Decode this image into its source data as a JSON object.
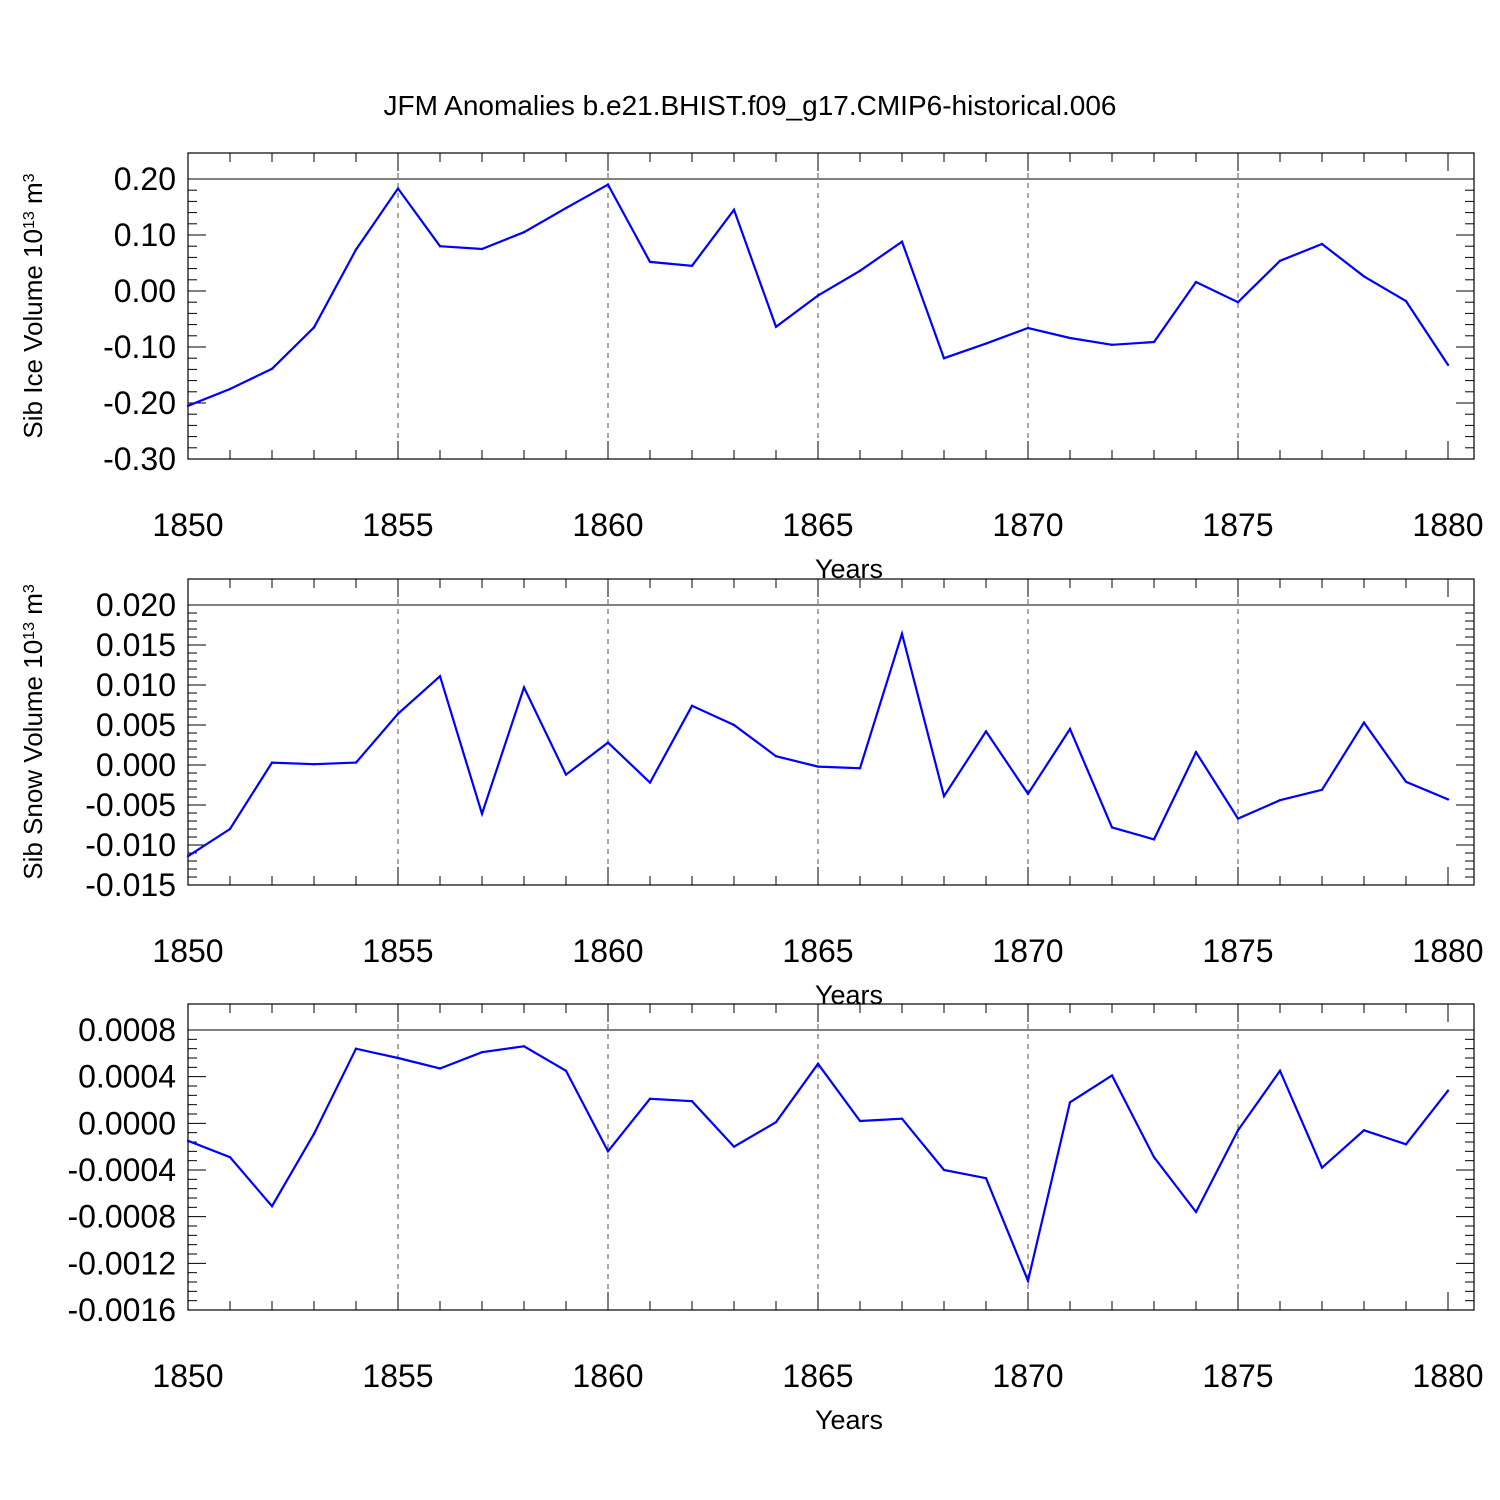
{
  "page": {
    "title": "JFM Anomalies b.e21.BHIST.f09_g17.CMIP6-historical.006"
  },
  "style": {
    "line_color": "#0000ff",
    "grid_color": "#555555"
  },
  "chart_data": [
    {
      "type": "line",
      "xlabel": "Years",
      "ylabel": "Sib Ice Volume",
      "ylabel_unit_base": "10",
      "ylabel_unit_exp": "13",
      "ylabel_unit": "m",
      "ylabel_unit_sup": "3",
      "xlim": [
        1850,
        1880
      ],
      "ylim": [
        -0.3,
        0.2
      ],
      "xticks": [
        1850,
        1855,
        1860,
        1865,
        1870,
        1875,
        1880
      ],
      "xtick_labels": [
        "1850",
        "1855",
        "1860",
        "1865",
        "1870",
        "1875",
        "1880"
      ],
      "yticks": [
        -0.3,
        -0.2,
        -0.1,
        0.0,
        0.1,
        0.2
      ],
      "ytick_labels": [
        "-0.30",
        "-0.20",
        "-0.10",
        "0.00",
        "0.10",
        "0.20"
      ],
      "x_minor_step": 1,
      "y_minor_step": 0.02,
      "grid": "x-major-dashed",
      "x": [
        1850,
        1851,
        1852,
        1853,
        1854,
        1855,
        1856,
        1857,
        1858,
        1859,
        1860,
        1861,
        1862,
        1863,
        1864,
        1865,
        1866,
        1867,
        1868,
        1869,
        1870,
        1871,
        1872,
        1873,
        1874,
        1875,
        1876,
        1877,
        1878,
        1879,
        1880
      ],
      "y": [
        -0.205,
        -0.175,
        -0.139,
        -0.065,
        0.074,
        0.183,
        0.08,
        0.075,
        0.105,
        0.148,
        0.19,
        0.052,
        0.045,
        0.145,
        -0.064,
        -0.008,
        0.036,
        0.088,
        -0.12,
        -0.094,
        -0.066,
        -0.084,
        -0.096,
        -0.091,
        0.016,
        -0.02,
        0.054,
        0.084,
        0.026,
        -0.018,
        -0.132
      ]
    },
    {
      "type": "line",
      "xlabel": "Years",
      "ylabel": "Sib Snow Volume",
      "ylabel_unit_base": "10",
      "ylabel_unit_exp": "13",
      "ylabel_unit": "m",
      "ylabel_unit_sup": "3",
      "xlim": [
        1850,
        1880
      ],
      "ylim": [
        -0.015,
        0.02
      ],
      "xticks": [
        1850,
        1855,
        1860,
        1865,
        1870,
        1875,
        1880
      ],
      "xtick_labels": [
        "1850",
        "1855",
        "1860",
        "1865",
        "1870",
        "1875",
        "1880"
      ],
      "yticks": [
        -0.015,
        -0.01,
        -0.005,
        0.0,
        0.005,
        0.01,
        0.015,
        0.02
      ],
      "ytick_labels": [
        "-0.015",
        "-0.010",
        "-0.005",
        "0.000",
        "0.005",
        "0.010",
        "0.015",
        "0.020"
      ],
      "x_minor_step": 1,
      "y_minor_step": 0.001,
      "grid": "x-major-dashed",
      "x": [
        1850,
        1851,
        1852,
        1853,
        1854,
        1855,
        1856,
        1857,
        1858,
        1859,
        1860,
        1861,
        1862,
        1863,
        1864,
        1865,
        1866,
        1867,
        1868,
        1869,
        1870,
        1871,
        1872,
        1873,
        1874,
        1875,
        1876,
        1877,
        1878,
        1879,
        1880
      ],
      "y": [
        -0.0114,
        -0.008,
        0.0003,
        0.0001,
        0.0003,
        0.0064,
        0.0111,
        -0.0061,
        0.0097,
        -0.0012,
        0.0028,
        -0.0022,
        0.0074,
        0.005,
        0.0011,
        -0.0002,
        -0.0004,
        0.0164,
        -0.0039,
        0.0042,
        -0.0036,
        0.0045,
        -0.0078,
        -0.0093,
        0.0016,
        -0.0067,
        -0.0044,
        -0.0031,
        0.0053,
        -0.0021,
        -0.0043
      ]
    },
    {
      "type": "line",
      "xlabel": "Years",
      "ylabel": "",
      "xlim": [
        1850,
        1880
      ],
      "ylim": [
        -0.0016,
        0.0008
      ],
      "xticks": [
        1850,
        1855,
        1860,
        1865,
        1870,
        1875,
        1880
      ],
      "xtick_labels": [
        "1850",
        "1855",
        "1860",
        "1865",
        "1870",
        "1875",
        "1880"
      ],
      "yticks": [
        -0.0016,
        -0.0012,
        -0.0008,
        -0.0004,
        0.0,
        0.0004,
        0.0008
      ],
      "ytick_labels": [
        "-0.0016",
        "-0.0012",
        "-0.0008",
        "-0.0004",
        "0.0000",
        "0.0004",
        "0.0008"
      ],
      "x_minor_step": 1,
      "y_minor_step": 8e-05,
      "grid": "x-major-dashed",
      "x": [
        1850,
        1851,
        1852,
        1853,
        1854,
        1855,
        1856,
        1857,
        1858,
        1859,
        1860,
        1861,
        1862,
        1863,
        1864,
        1865,
        1866,
        1867,
        1868,
        1869,
        1870,
        1871,
        1872,
        1873,
        1874,
        1875,
        1876,
        1877,
        1878,
        1879,
        1880
      ],
      "y": [
        -0.00015,
        -0.00029,
        -0.00071,
        -9e-05,
        0.00064,
        0.00056,
        0.00047,
        0.00061,
        0.00066,
        0.00045,
        -0.00024,
        0.00021,
        0.00019,
        -0.0002,
        1e-05,
        0.00051,
        2e-05,
        4e-05,
        -0.0004,
        -0.00047,
        -0.00135,
        0.00018,
        0.00041,
        -0.00029,
        -0.00076,
        -6e-05,
        0.00045,
        -0.00038,
        -6e-05,
        -0.00018,
        0.00028
      ]
    }
  ]
}
